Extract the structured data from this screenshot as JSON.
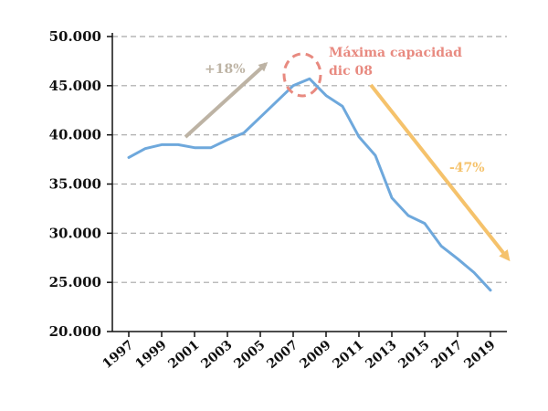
{
  "chart_data": {
    "type": "line",
    "title": "",
    "xlabel": "",
    "ylabel": "",
    "ylim": [
      20000,
      50000
    ],
    "grid": true,
    "y_ticks": [
      "20.000",
      "25.000",
      "30.000",
      "35.000",
      "40.000",
      "45.000",
      "50.000"
    ],
    "x_tick_labels": [
      "1997",
      "1999",
      "2001",
      "2003",
      "2005",
      "2007",
      "2009",
      "2011",
      "2013",
      "2015",
      "2017",
      "2019"
    ],
    "series": [
      {
        "x": [
          1997,
          1998,
          1999,
          2000,
          2001,
          2002,
          2003,
          2004,
          2005,
          2006,
          2007,
          2008,
          2009,
          2010,
          2011,
          2012,
          2013,
          2014,
          2015,
          2016,
          2017,
          2018,
          2019
        ],
        "values": [
          37700,
          38600,
          39000,
          39000,
          38700,
          38700,
          39500,
          40200,
          41800,
          43400,
          45000,
          45700,
          44000,
          42900,
          39800,
          37900,
          33600,
          31800,
          31000,
          28700,
          27400,
          26000,
          24200
        ],
        "color": "#6EA8DC"
      }
    ],
    "annotations": {
      "rise_label": "+18%",
      "rise_color": "#BDB3A4",
      "peak_label_line1": "Máxima capacidad",
      "peak_label_line2": "dic 08",
      "peak_color": "#E88A80",
      "fall_label": "-47%",
      "fall_color": "#F5C26B"
    }
  }
}
